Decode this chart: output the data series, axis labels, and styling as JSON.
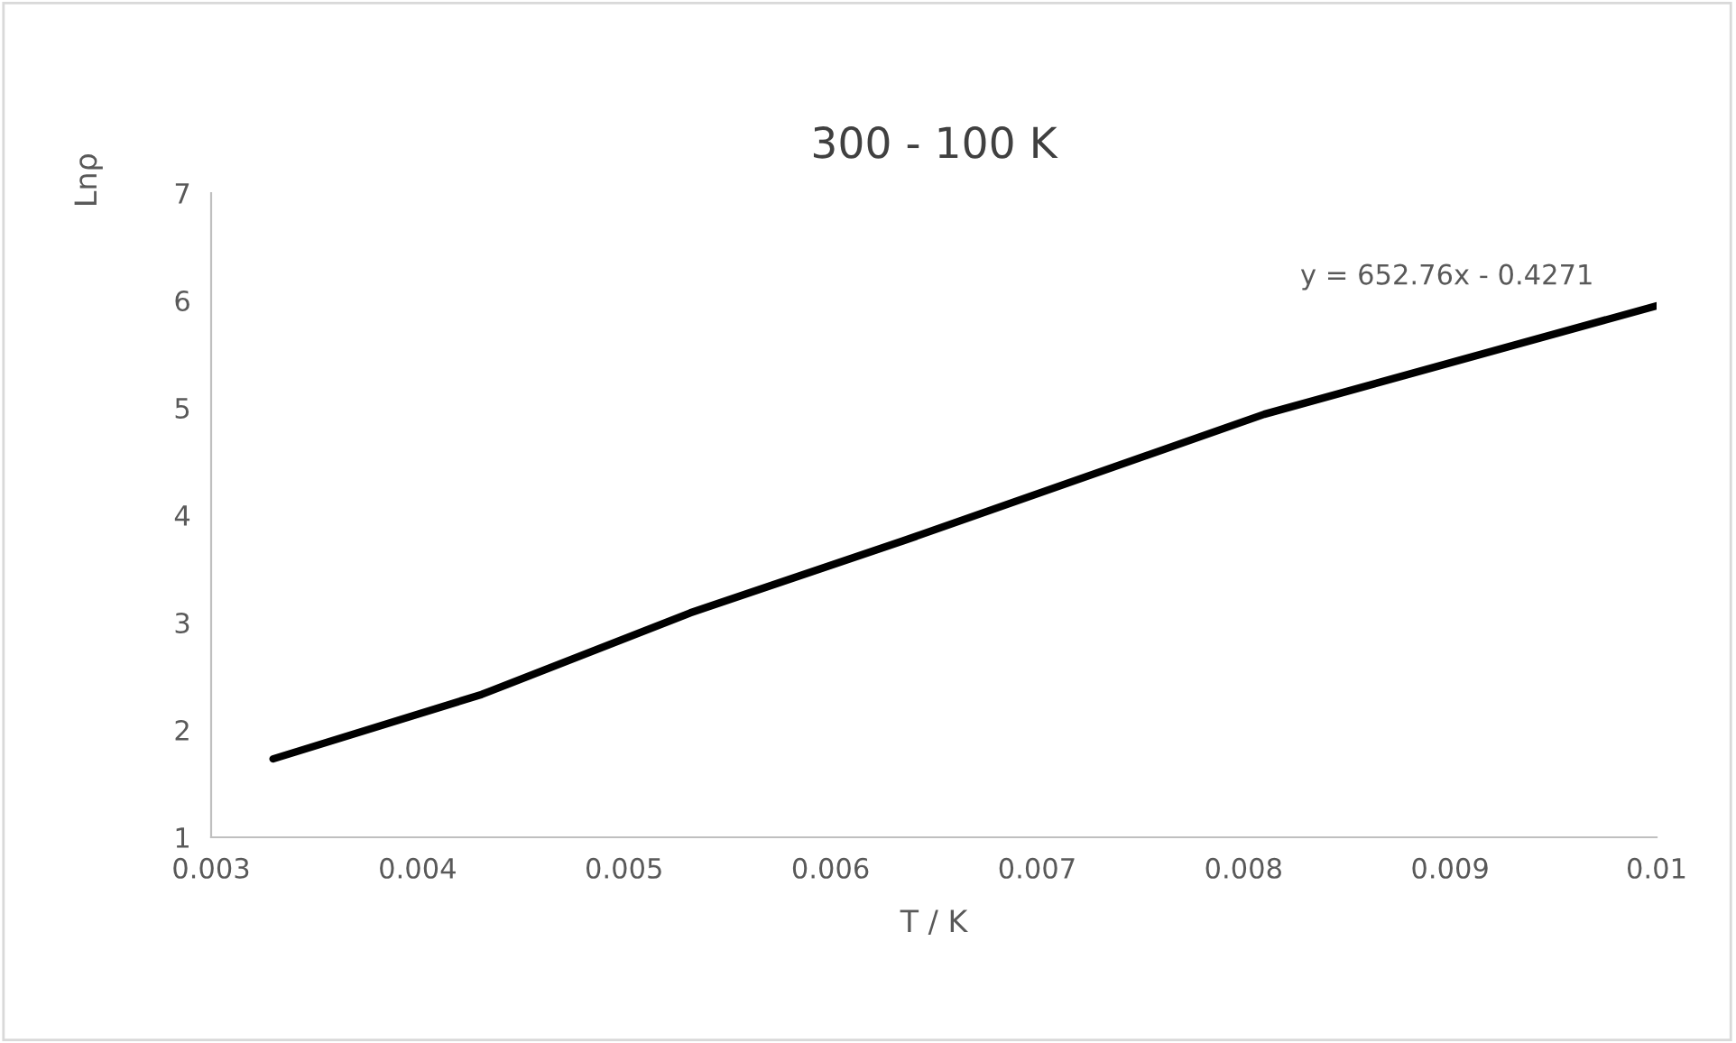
{
  "chart_data": {
    "type": "line",
    "title": "300 - 100 K",
    "xlabel": "T / K",
    "ylabel": "Lnρ",
    "annotations": [
      "y = 652.76x - 0.4271"
    ],
    "series": [
      {
        "color": "#000000",
        "x": [
          0.0033,
          0.00431,
          0.00532,
          0.00635,
          0.0081,
          0.01
        ],
        "values": [
          1.73,
          2.33,
          3.09,
          3.76,
          4.94,
          5.95
        ]
      }
    ],
    "xlim": [
      0.003,
      0.01
    ],
    "xticks": [
      0.003,
      0.004,
      0.005,
      0.006,
      0.007,
      0.008,
      0.009,
      0.01
    ],
    "ylim": [
      1,
      7
    ],
    "yticks": [
      1,
      2,
      3,
      4,
      5,
      6,
      7
    ],
    "grid": false,
    "legend": false,
    "marker": "none",
    "line_style": "solid"
  }
}
